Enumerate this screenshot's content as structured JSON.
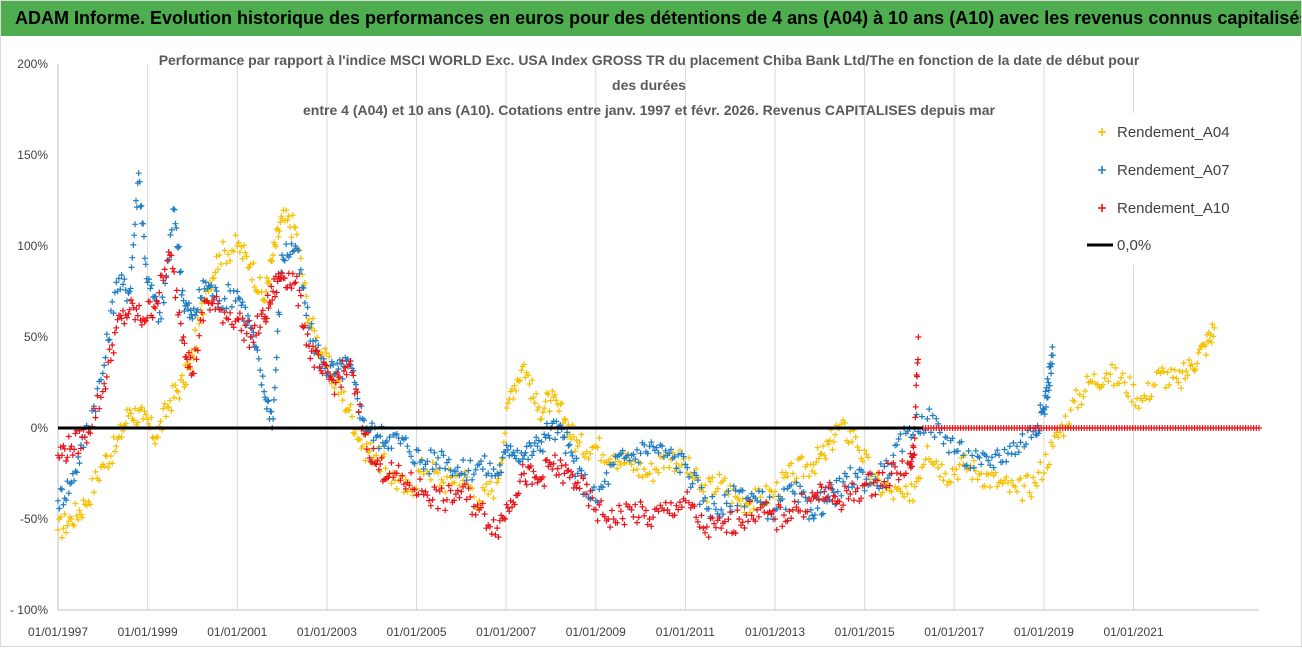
{
  "banner": {
    "text": "ADAM Informe. Evolution historique des performances en euros pour des détentions de 4 ans (A04) à 10 ans (A10) avec les revenus connus capitalisés",
    "color": "#4ead4e"
  },
  "chart_data": {
    "type": "scatter",
    "title_lines": [
      "Performance par rapport à l'indice MSCI WORLD Exc. USA Index GROSS TR  du placement Chiba Bank Ltd/The en fonction de la date de début pour",
      "des durées",
      "entre 4 (A04) et 10 ans (A10). Cotations entre janv. 1997 et févr. 2026. Revenus CAPITALISES depuis mar"
    ],
    "xlabel": "",
    "ylabel": "",
    "xlim": [
      1997.0,
      2023.8
    ],
    "ylim": [
      -100,
      200
    ],
    "ytick_values": [
      -100,
      -50,
      0,
      50,
      100,
      150,
      200
    ],
    "ytick_labels": [
      "- 100%",
      "-50%",
      "0%",
      "50%",
      "100%",
      "150%",
      "200%"
    ],
    "xtick_values": [
      1997,
      1999,
      2001,
      2003,
      2005,
      2007,
      2009,
      2011,
      2013,
      2015,
      2017,
      2019,
      2021
    ],
    "xtick_labels": [
      "01/01/1997",
      "01/01/1999",
      "01/01/2001",
      "01/01/2003",
      "01/01/2005",
      "01/01/2007",
      "01/01/2009",
      "01/01/2011",
      "01/01/2013",
      "01/01/2015",
      "01/01/2017",
      "01/01/2019",
      "01/01/2021"
    ],
    "grid": "vertical",
    "legend_position": "right",
    "series": [
      {
        "name": "Rendement_A04",
        "color": "#f5c000",
        "marker": "+",
        "x": [
          1997.0,
          1997.3,
          1997.6,
          1998.0,
          1998.3,
          1998.6,
          1998.9,
          1999.2,
          1999.5,
          1999.8,
          2000.0,
          2000.3,
          2000.6,
          2001.0,
          2001.3,
          2001.6,
          2001.8,
          2002.0,
          2002.3,
          2002.6,
          2002.9,
          2003.2,
          2003.5,
          2003.8,
          2004.1,
          2004.4,
          2004.8,
          2005.2,
          2005.6,
          2006.0,
          2006.4,
          2006.8,
          2007.1,
          2007.4,
          2007.7,
          2008.0,
          2008.3,
          2008.6,
          2009.0,
          2009.4,
          2009.8,
          2010.2,
          2010.6,
          2011.0,
          2011.4,
          2011.8,
          2012.2,
          2012.6,
          2013.0,
          2013.4,
          2013.8,
          2014.1,
          2014.4,
          2014.8,
          2015.2,
          2015.6,
          2016.0,
          2016.4,
          2016.8,
          2017.2,
          2017.6,
          2018.0,
          2018.4,
          2018.8,
          2019.2,
          2019.6,
          2020.0,
          2020.4,
          2020.8,
          2021.2,
          2021.6,
          2022.0,
          2022.3,
          2022.6,
          2022.8
        ],
        "y": [
          -56,
          -50,
          -42,
          -20,
          -10,
          10,
          5,
          -5,
          15,
          25,
          40,
          75,
          95,
          100,
          90,
          70,
          95,
          115,
          110,
          60,
          40,
          25,
          10,
          -10,
          -15,
          -25,
          -35,
          -20,
          -30,
          -25,
          -40,
          -30,
          20,
          35,
          10,
          15,
          5,
          -10,
          -10,
          -15,
          -20,
          -25,
          -15,
          -20,
          -35,
          -30,
          -40,
          -40,
          -35,
          -25,
          -20,
          -15,
          0,
          -5,
          -30,
          -35,
          -40,
          -10,
          -25,
          -20,
          -25,
          -30,
          -35,
          -30,
          -10,
          10,
          25,
          30,
          25,
          15,
          30,
          25,
          35,
          45,
          55
        ]
      },
      {
        "name": "Rendement_A07",
        "color": "#1f7dc4",
        "marker": "+",
        "x": [
          1997.0,
          1997.3,
          1997.6,
          1998.0,
          1998.3,
          1998.6,
          1998.8,
          1999.0,
          1999.3,
          1999.6,
          1999.8,
          2000.0,
          2000.3,
          2000.6,
          2001.0,
          2001.3,
          2001.6,
          2001.8,
          2002.0,
          2002.3,
          2002.6,
          2002.9,
          2003.2,
          2003.5,
          2003.8,
          2004.1,
          2004.4,
          2004.8,
          2005.2,
          2005.6,
          2006.0,
          2006.4,
          2006.8,
          2007.1,
          2007.4,
          2007.7,
          2008.0,
          2008.3,
          2008.6,
          2009.0,
          2009.4,
          2009.8,
          2010.2,
          2010.6,
          2011.0,
          2011.4,
          2011.8,
          2012.2,
          2012.6,
          2013.0,
          2013.4,
          2013.8,
          2014.1,
          2014.4,
          2014.8,
          2015.2,
          2015.6,
          2016.0,
          2016.4,
          2016.8,
          2017.2,
          2017.6,
          2018.0,
          2018.4,
          2018.8,
          2019.0,
          2019.1,
          2019.2
        ],
        "y": [
          -40,
          -30,
          -5,
          30,
          80,
          75,
          140,
          80,
          60,
          120,
          70,
          60,
          80,
          70,
          75,
          55,
          20,
          5,
          95,
          100,
          55,
          35,
          30,
          35,
          5,
          -5,
          -5,
          -10,
          -20,
          -15,
          -25,
          -20,
          -25,
          -10,
          -15,
          -10,
          0,
          -5,
          -25,
          -40,
          -20,
          -15,
          -10,
          -15,
          -20,
          -40,
          -45,
          -35,
          -40,
          -45,
          -35,
          -45,
          -40,
          -35,
          -25,
          -30,
          -20,
          0,
          5,
          -5,
          -15,
          -20,
          -15,
          -10,
          0,
          10,
          25,
          40
        ]
      },
      {
        "name": "Rendement_A10",
        "color": "#e8141c",
        "marker": "+",
        "x": [
          1997.0,
          1997.3,
          1997.6,
          1998.0,
          1998.3,
          1998.6,
          1998.9,
          1999.2,
          1999.5,
          1999.8,
          2000.0,
          2000.3,
          2000.6,
          2001.0,
          2001.3,
          2001.6,
          2001.8,
          2002.0,
          2002.3,
          2002.6,
          2002.9,
          2003.2,
          2003.5,
          2003.8,
          2004.1,
          2004.4,
          2004.8,
          2005.2,
          2005.6,
          2006.0,
          2006.4,
          2006.8,
          2007.1,
          2007.4,
          2007.7,
          2008.0,
          2008.3,
          2008.6,
          2009.0,
          2009.4,
          2009.8,
          2010.2,
          2010.6,
          2011.0,
          2011.4,
          2011.8,
          2012.2,
          2012.6,
          2013.0,
          2013.4,
          2013.8,
          2014.1,
          2014.4,
          2014.8,
          2015.2,
          2015.6,
          2016.0,
          2016.1,
          2016.2
        ],
        "y": [
          -15,
          -10,
          -5,
          20,
          55,
          65,
          60,
          70,
          95,
          50,
          30,
          70,
          65,
          60,
          50,
          60,
          75,
          85,
          80,
          45,
          30,
          25,
          35,
          0,
          -20,
          -25,
          -30,
          -35,
          -40,
          -35,
          -45,
          -55,
          -40,
          -25,
          -30,
          -20,
          -25,
          -30,
          -45,
          -50,
          -45,
          -50,
          -45,
          -40,
          -55,
          -55,
          -50,
          -45,
          -50,
          -45,
          -40,
          -35,
          -40,
          -35,
          -30,
          -25,
          -20,
          -15,
          50
        ]
      },
      {
        "name": "0,0%",
        "color": "#000000",
        "marker": "line",
        "x": [
          1997.0,
          2016.3
        ],
        "y": [
          0,
          0
        ]
      }
    ],
    "flat_tail": {
      "name": "Rendement_A10",
      "color": "#e8141c",
      "x_start": 2016.3,
      "x_end": 2023.8,
      "y": 0
    }
  }
}
